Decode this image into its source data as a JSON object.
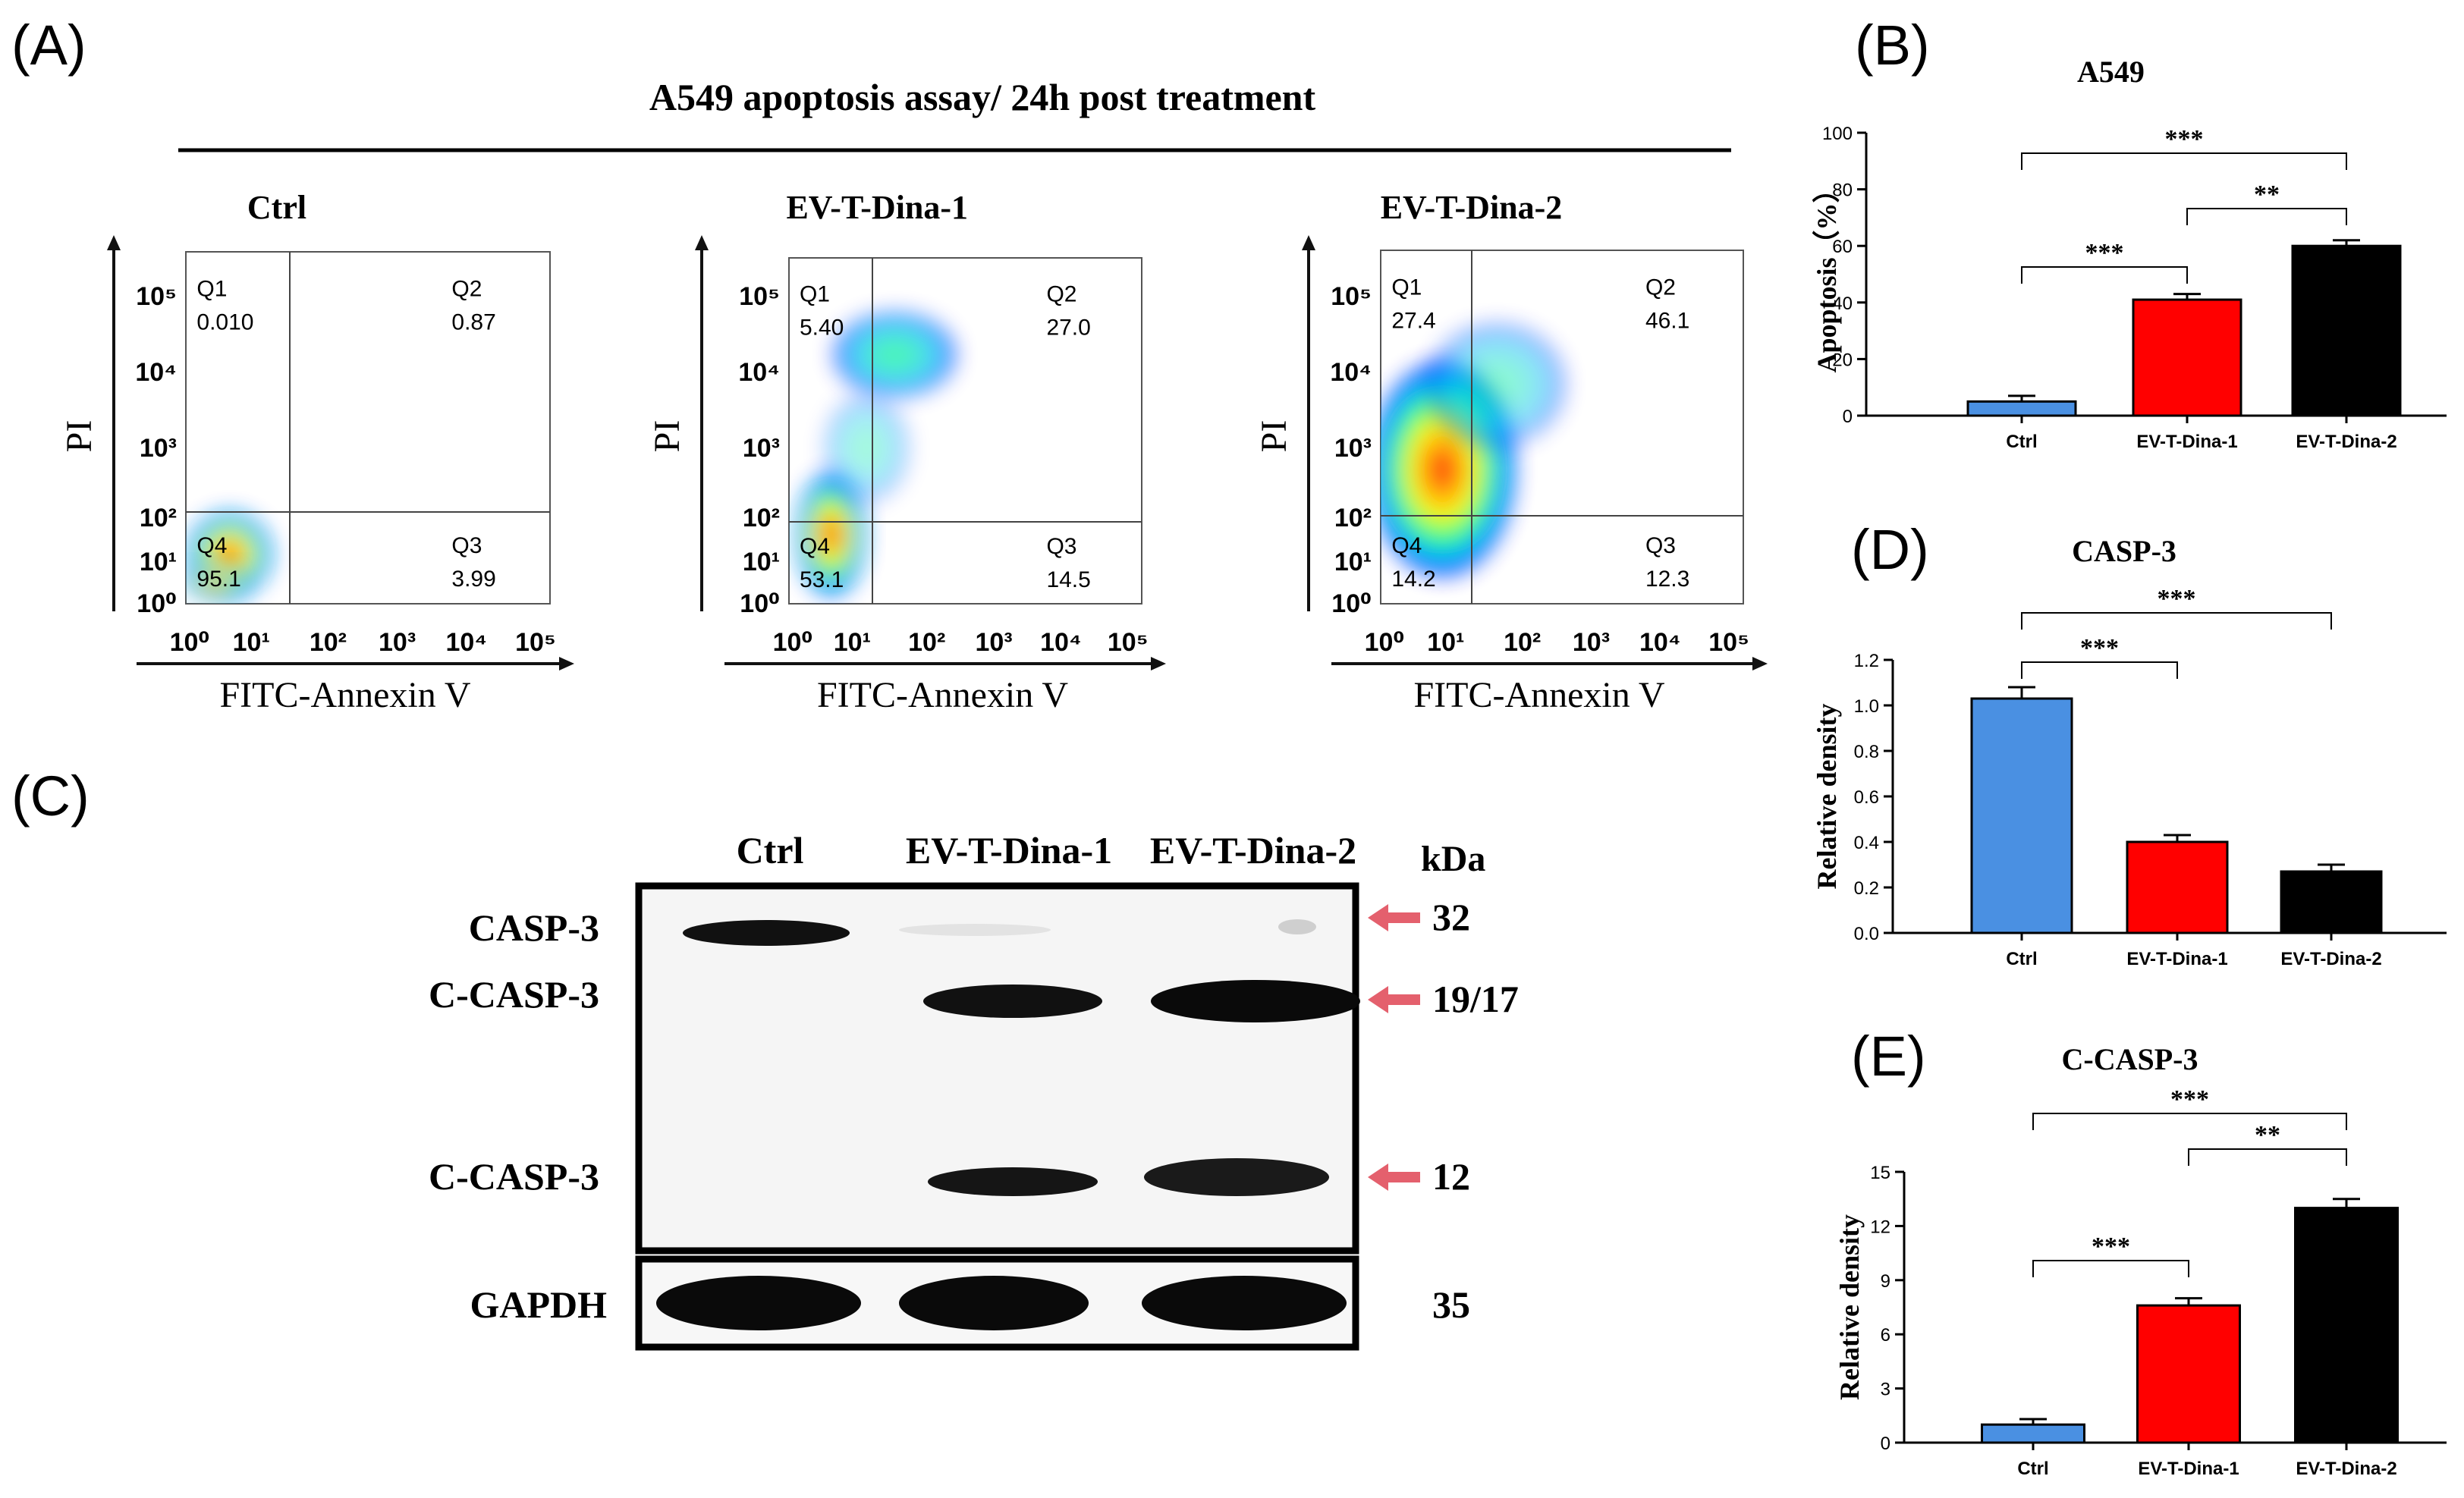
{
  "panel_labels": {
    "a": "(A)",
    "b": "(B)",
    "c": "(C)",
    "d": "(D)",
    "e": "(E)"
  },
  "flow": {
    "title": "A549 apoptosis assay/ 24h post treatment",
    "xlabel": "FITC-Annexin V",
    "ylabel": "PI",
    "tick_labels": [
      "10⁰",
      "10¹",
      "10²",
      "10³",
      "10⁴",
      "10⁵"
    ],
    "plots": [
      {
        "name": "Ctrl",
        "quadrants": [
          {
            "label": "Q1",
            "value": "0.010"
          },
          {
            "label": "Q2",
            "value": "0.87"
          },
          {
            "label": "Q3",
            "value": "3.99"
          },
          {
            "label": "Q4",
            "value": "95.1"
          }
        ]
      },
      {
        "name": "EV-T-Dina-1",
        "quadrants": [
          {
            "label": "Q1",
            "value": "5.40"
          },
          {
            "label": "Q2",
            "value": "27.0"
          },
          {
            "label": "Q3",
            "value": "14.5"
          },
          {
            "label": "Q4",
            "value": "53.1"
          }
        ]
      },
      {
        "name": "EV-T-Dina-2",
        "quadrants": [
          {
            "label": "Q1",
            "value": "27.4"
          },
          {
            "label": "Q2",
            "value": "46.1"
          },
          {
            "label": "Q3",
            "value": "12.3"
          },
          {
            "label": "Q4",
            "value": "14.2"
          }
        ]
      }
    ]
  },
  "blot": {
    "lanes": [
      "Ctrl",
      "EV-T-Dina-1",
      "EV-T-Dina-2"
    ],
    "unit": "kDa",
    "rows": [
      {
        "label": "CASP-3",
        "kda": "32"
      },
      {
        "label": "C-CASP-3",
        "kda": "19/17"
      },
      {
        "label": "C-CASP-3",
        "kda": "12"
      },
      {
        "label": "GAPDH",
        "kda": "35"
      }
    ],
    "arrow_color": "#e4606d"
  },
  "chart_data": [
    {
      "panel": "(B)",
      "type": "bar",
      "title": "A549",
      "xlabel": "",
      "ylabel": "Apoptosis（%）",
      "categories": [
        "Ctrl",
        "EV-T-Dina-1",
        "EV-T-Dina-2"
      ],
      "values": [
        5,
        41,
        60
      ],
      "errors": [
        2,
        2,
        2
      ],
      "colors": [
        "#4a90e2",
        "#ff0000",
        "#000000"
      ],
      "ylim": [
        0,
        100
      ],
      "yticks": [
        "0",
        "20",
        "40",
        "60",
        "80",
        "100"
      ],
      "significance": [
        {
          "from": 0,
          "to": 1,
          "label": "***"
        },
        {
          "from": 1,
          "to": 2,
          "label": "**"
        },
        {
          "from": 0,
          "to": 2,
          "label": "***"
        }
      ]
    },
    {
      "panel": "(D)",
      "type": "bar",
      "title": "CASP-3",
      "xlabel": "",
      "ylabel": "Relative density",
      "categories": [
        "Ctrl",
        "EV-T-Dina-1",
        "EV-T-Dina-2"
      ],
      "values": [
        1.03,
        0.4,
        0.27
      ],
      "errors": [
        0.05,
        0.03,
        0.03
      ],
      "colors": [
        "#4a90e2",
        "#ff0000",
        "#000000"
      ],
      "ylim": [
        0,
        1.2
      ],
      "yticks": [
        "0.0",
        "0.2",
        "0.4",
        "0.6",
        "0.8",
        "1.0",
        "1.2"
      ],
      "significance": [
        {
          "from": 0,
          "to": 1,
          "label": "***"
        },
        {
          "from": 0,
          "to": 2,
          "label": "***"
        }
      ]
    },
    {
      "panel": "(E)",
      "type": "bar",
      "title": "C-CASP-3",
      "xlabel": "",
      "ylabel": "Relative density",
      "categories": [
        "Ctrl",
        "EV-T-Dina-1",
        "EV-T-Dina-2"
      ],
      "values": [
        1.0,
        7.6,
        13.0
      ],
      "errors": [
        0.3,
        0.4,
        0.5
      ],
      "colors": [
        "#4a90e2",
        "#ff0000",
        "#000000"
      ],
      "ylim": [
        0,
        15
      ],
      "yticks": [
        "0",
        "3",
        "6",
        "9",
        "12",
        "15"
      ],
      "significance": [
        {
          "from": 0,
          "to": 1,
          "label": "***"
        },
        {
          "from": 1,
          "to": 2,
          "label": "**"
        },
        {
          "from": 0,
          "to": 2,
          "label": "***"
        }
      ]
    }
  ]
}
